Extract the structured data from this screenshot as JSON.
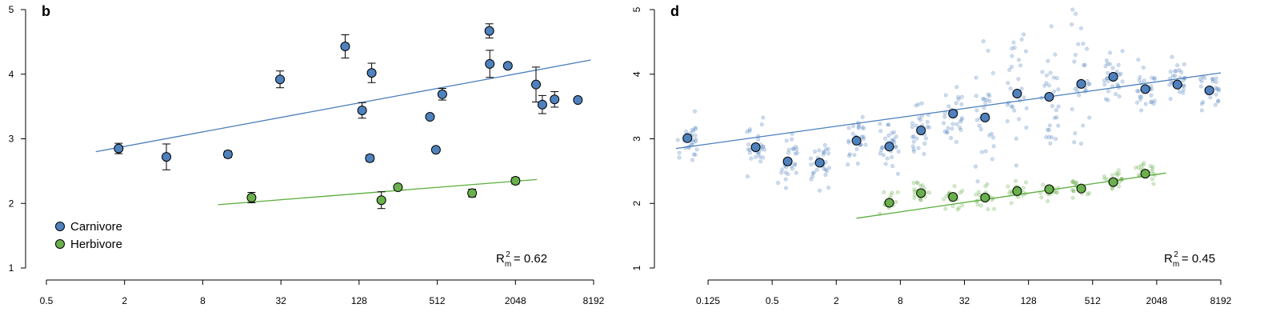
{
  "colors": {
    "carnivore": "#4F81BD",
    "herbivore": "#6AB04C",
    "carnivore_line": "#4A7EBB",
    "herbivore_line": "#5AAE3C",
    "axis": "#000000",
    "errorbar": "#000000"
  },
  "legend": {
    "placement": "bottom-left of panel b",
    "items": [
      {
        "label": "Carnivore",
        "color": "#4F81BD"
      },
      {
        "label": "Herbivore",
        "color": "#6AB04C"
      }
    ]
  },
  "chart_data": [
    {
      "panel": "b",
      "type": "scatter",
      "x_scale": "log2",
      "xlim": [
        0.5,
        8192
      ],
      "ylim": [
        1,
        5
      ],
      "x_ticks": [
        "0.5",
        "2",
        "8",
        "32",
        "128",
        "512",
        "2048",
        "8192"
      ],
      "x_tick_values": [
        0.5,
        2,
        8,
        32,
        128,
        512,
        2048,
        8192
      ],
      "y_ticks": [
        "1",
        "2",
        "3",
        "4",
        "5"
      ],
      "y_tick_values": [
        1,
        2,
        3,
        4,
        5
      ],
      "annotation": {
        "prefix": "R",
        "sup": "2",
        "sub": "m",
        "suffix": " = 0.62"
      },
      "series": [
        {
          "name": "Carnivore",
          "color": "#4F81BD",
          "points": [
            {
              "x": 1.8,
              "y": 2.85,
              "err": 0.08
            },
            {
              "x": 4.2,
              "y": 2.72,
              "err": 0.2
            },
            {
              "x": 12.5,
              "y": 2.76,
              "err": 0.05
            },
            {
              "x": 31.5,
              "y": 3.92,
              "err": 0.13
            },
            {
              "x": 100,
              "y": 4.43,
              "err": 0.18
            },
            {
              "x": 135,
              "y": 3.44,
              "err": 0.12
            },
            {
              "x": 155,
              "y": 2.7,
              "err": 0.05
            },
            {
              "x": 160,
              "y": 4.02,
              "err": 0.15
            },
            {
              "x": 450,
              "y": 3.34,
              "err": 0
            },
            {
              "x": 500,
              "y": 2.83,
              "err": 0
            },
            {
              "x": 560,
              "y": 3.69,
              "err": 0.09
            },
            {
              "x": 1290,
              "y": 4.67,
              "err": 0.11
            },
            {
              "x": 1300,
              "y": 4.16,
              "err": 0.21
            },
            {
              "x": 1790,
              "y": 4.13,
              "err": 0
            },
            {
              "x": 2950,
              "y": 3.84,
              "err": 0.27
            },
            {
              "x": 3300,
              "y": 3.53,
              "err": 0.14
            },
            {
              "x": 4100,
              "y": 3.61,
              "err": 0.12
            },
            {
              "x": 6200,
              "y": 3.6,
              "err": 0
            }
          ],
          "fit_line": {
            "x": [
              1.2,
              7800
            ],
            "y": [
              2.8,
              4.22
            ]
          }
        },
        {
          "name": "Herbivore",
          "color": "#6AB04C",
          "points": [
            {
              "x": 19,
              "y": 2.09,
              "err": 0.08
            },
            {
              "x": 190,
              "y": 2.05,
              "err": 0.13
            },
            {
              "x": 255,
              "y": 2.25,
              "err": 0
            },
            {
              "x": 950,
              "y": 2.16,
              "err": 0.06
            },
            {
              "x": 2050,
              "y": 2.35,
              "err": 0.05
            }
          ],
          "fit_line": {
            "x": [
              10.5,
              3000
            ],
            "y": [
              1.98,
              2.37
            ]
          }
        }
      ]
    },
    {
      "panel": "d",
      "type": "scatter",
      "x_scale": "log2",
      "xlim": [
        0.0625,
        8192
      ],
      "ylim": [
        1,
        5
      ],
      "x_ticks": [
        "0.125",
        "0.5",
        "2",
        "8",
        "32",
        "128",
        "512",
        "2048",
        "8192"
      ],
      "x_tick_values": [
        0.125,
        0.5,
        2,
        8,
        32,
        128,
        512,
        2048,
        8192
      ],
      "y_ticks": [
        "1",
        "2",
        "3",
        "4",
        "5"
      ],
      "y_tick_values": [
        1,
        2,
        3,
        4,
        5
      ],
      "annotation": {
        "prefix": "R",
        "sup": "2",
        "sub": "m",
        "suffix": " = 0.45"
      },
      "series": [
        {
          "name": "Carnivore",
          "color": "#4F81BD",
          "points": [
            {
              "x": 0.08,
              "y": 3.01
            },
            {
              "x": 0.35,
              "y": 2.87
            },
            {
              "x": 0.7,
              "y": 2.65
            },
            {
              "x": 1.4,
              "y": 2.63
            },
            {
              "x": 3.1,
              "y": 2.97
            },
            {
              "x": 6.3,
              "y": 2.88
            },
            {
              "x": 12.5,
              "y": 3.13
            },
            {
              "x": 25,
              "y": 3.39
            },
            {
              "x": 50,
              "y": 3.33
            },
            {
              "x": 100,
              "y": 3.7
            },
            {
              "x": 200,
              "y": 3.65
            },
            {
              "x": 400,
              "y": 3.85
            },
            {
              "x": 800,
              "y": 3.96
            },
            {
              "x": 1600,
              "y": 3.77
            },
            {
              "x": 3200,
              "y": 3.84
            },
            {
              "x": 6400,
              "y": 3.75
            }
          ],
          "fit_line": {
            "x": [
              0.0625,
              8192
            ],
            "y": [
              2.85,
              4.02
            ]
          }
        },
        {
          "name": "Herbivore",
          "color": "#6AB04C",
          "points": [
            {
              "x": 6.3,
              "y": 2.01
            },
            {
              "x": 12.5,
              "y": 2.16
            },
            {
              "x": 25,
              "y": 2.1
            },
            {
              "x": 50,
              "y": 2.09
            },
            {
              "x": 100,
              "y": 2.19
            },
            {
              "x": 200,
              "y": 2.22
            },
            {
              "x": 400,
              "y": 2.23
            },
            {
              "x": 800,
              "y": 2.33
            },
            {
              "x": 1600,
              "y": 2.46
            }
          ],
          "fit_line": {
            "x": [
              3.1,
              2500
            ],
            "y": [
              1.77,
              2.47
            ]
          }
        }
      ]
    }
  ]
}
